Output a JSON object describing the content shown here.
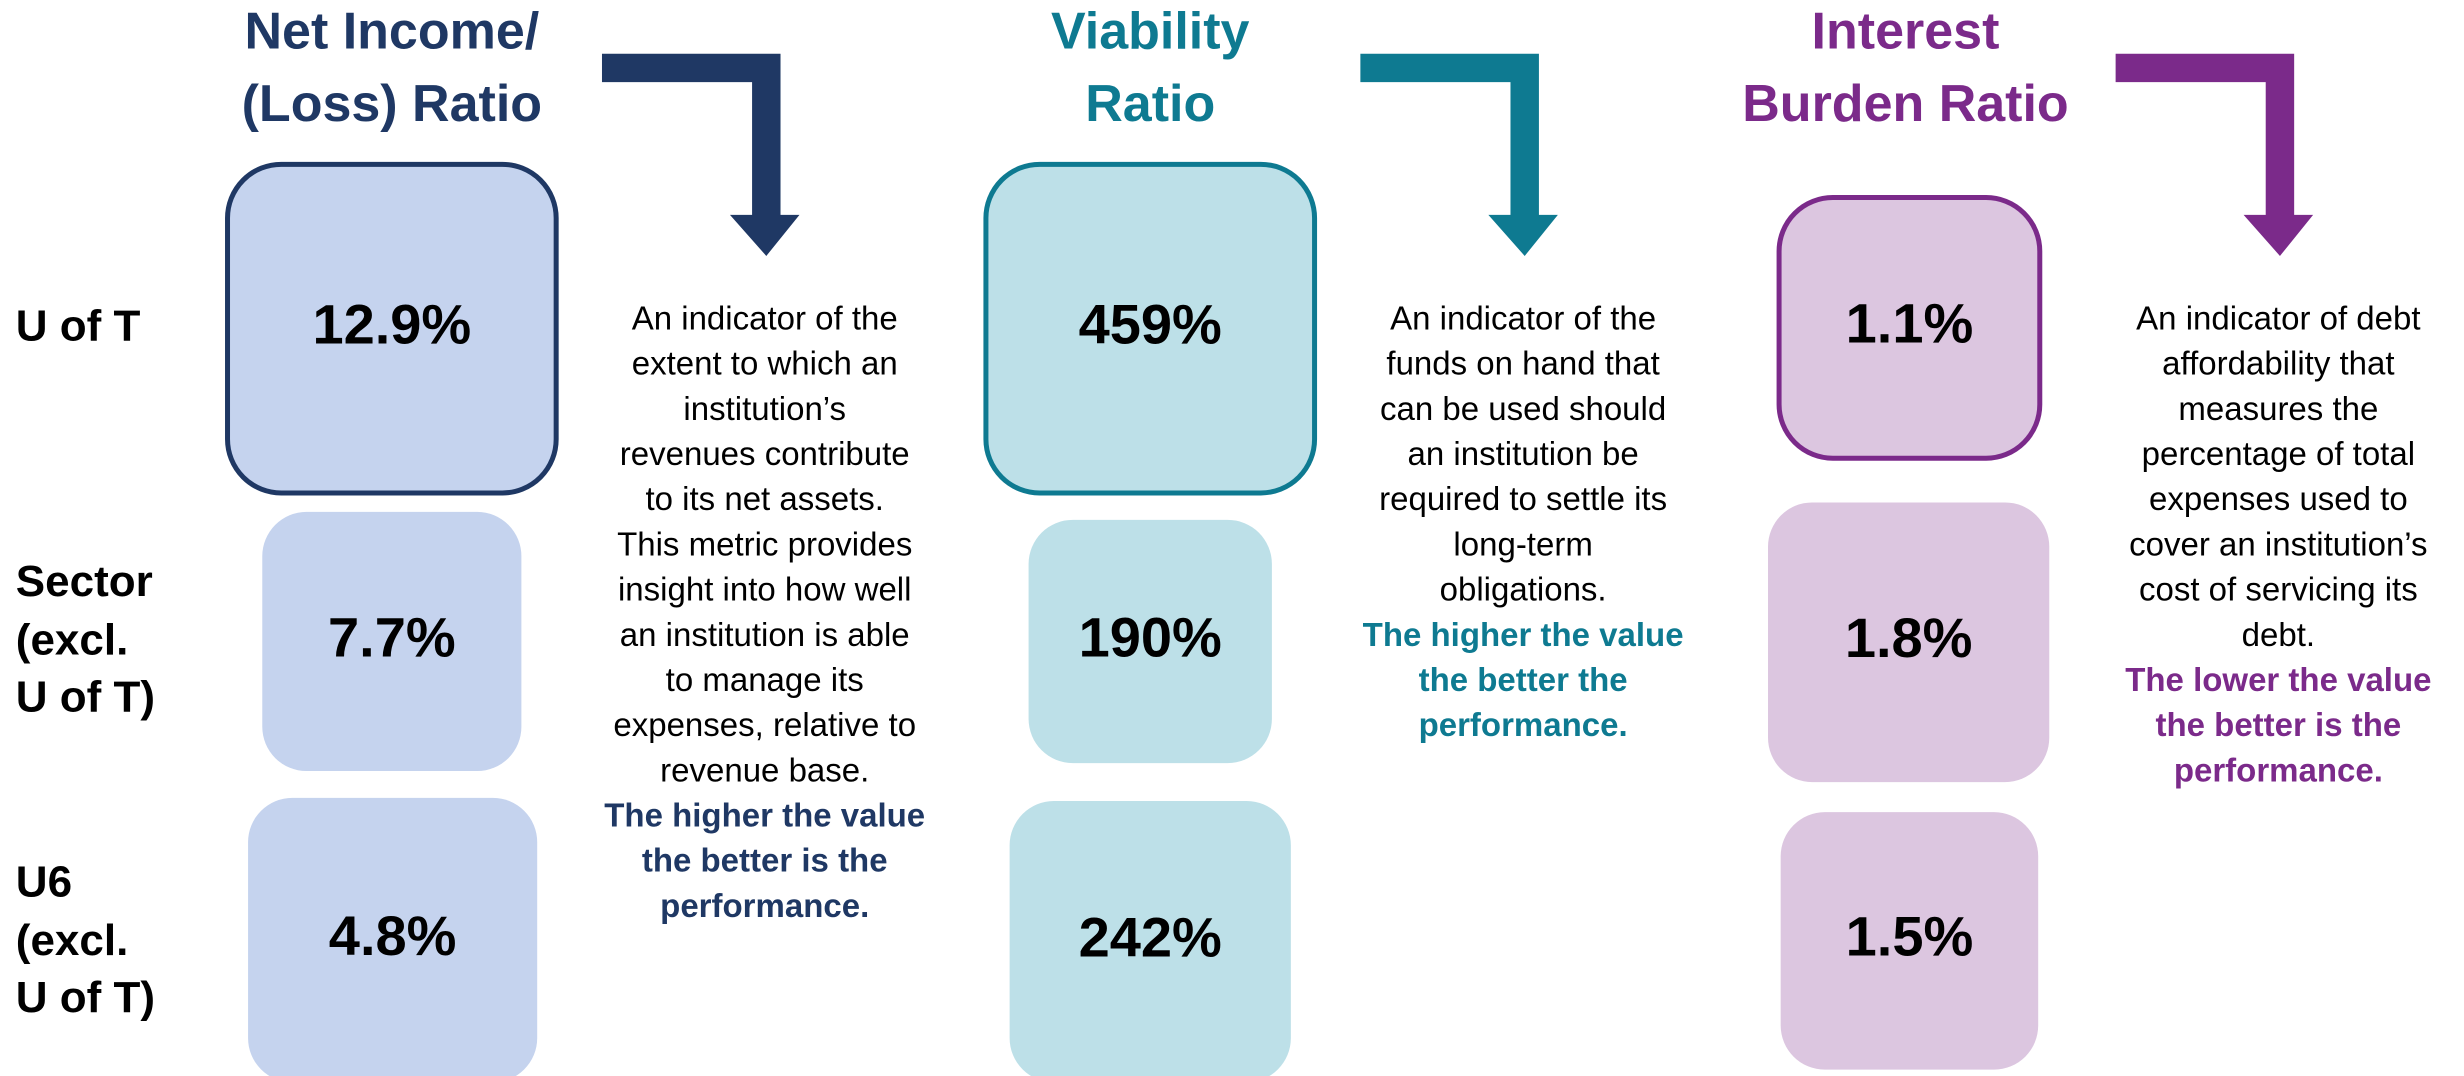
{
  "row_labels": [
    [
      "U of T"
    ],
    [
      "Sector",
      "(excl.",
      "U of T)"
    ],
    [
      "U6",
      "(excl.",
      "U of T)"
    ]
  ],
  "metrics": [
    {
      "title": [
        "Net Income/",
        "(Loss) Ratio"
      ],
      "values": [
        "12.9%",
        "7.7%",
        "4.8%"
      ],
      "description": [
        "An indicator of the",
        "extent to which an",
        "institution’s",
        "revenues contribute",
        "to its net assets.",
        "This metric provides",
        "insight into how well",
        "an institution is able",
        "to manage its",
        "expenses, relative to",
        "revenue base."
      ],
      "emphasis": [
        "The higher the value",
        "the better is the",
        "performance."
      ]
    },
    {
      "title": [
        "Viability",
        "Ratio"
      ],
      "values": [
        "459%",
        "190%",
        "242%"
      ],
      "description": [
        "An indicator of the",
        "funds on hand that",
        "can be used should",
        "an institution be",
        "required to settle its",
        "long-term",
        "obligations."
      ],
      "emphasis": [
        "The higher the value",
        "the better the",
        "performance."
      ]
    },
    {
      "title": [
        "Interest",
        "Burden Ratio"
      ],
      "values": [
        "1.1%",
        "1.8%",
        "1.5%"
      ],
      "description": [
        "An indicator of debt",
        "affordability that",
        "measures the",
        "percentage of total",
        "expenses used to",
        "cover an institution’s",
        "cost of servicing its",
        "debt."
      ],
      "emphasis": [
        "The lower the value",
        "the better is the",
        "performance."
      ]
    }
  ]
}
